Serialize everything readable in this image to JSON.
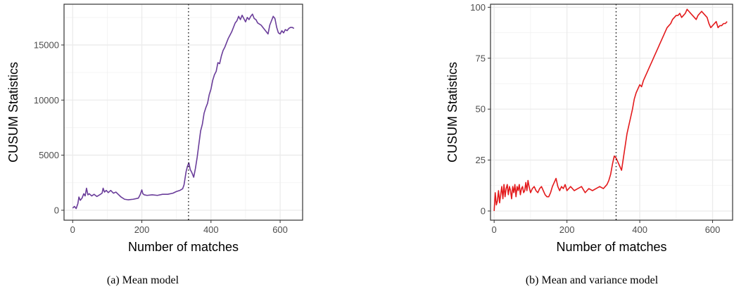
{
  "chart_data": [
    {
      "type": "line",
      "caption": "(a) Mean model",
      "xlabel": "Number of matches",
      "ylabel": "CUSUM Statistics",
      "xlim": [
        -25,
        665
      ],
      "ylim": [
        -900,
        18700
      ],
      "xticks": [
        0,
        200,
        400,
        600
      ],
      "yticks": [
        0,
        5000,
        10000,
        15000
      ],
      "xtick_labels": [
        "0",
        "200",
        "400",
        "600"
      ],
      "ytick_labels": [
        "0",
        "5000",
        "10000",
        "15000"
      ],
      "grid": true,
      "changepoint": 335,
      "line_color": "#6a3d9a",
      "x": [
        0,
        5,
        10,
        15,
        18,
        22,
        27,
        32,
        36,
        40,
        44,
        48,
        55,
        62,
        70,
        78,
        85,
        88,
        92,
        97,
        103,
        110,
        118,
        125,
        130,
        140,
        150,
        160,
        175,
        190,
        195,
        200,
        203,
        207,
        215,
        230,
        245,
        260,
        275,
        290,
        300,
        310,
        318,
        322,
        328,
        332,
        336,
        340,
        345,
        350,
        355,
        360,
        365,
        370,
        375,
        380,
        385,
        390,
        395,
        400,
        405,
        410,
        415,
        420,
        425,
        430,
        435,
        440,
        445,
        450,
        455,
        460,
        465,
        470,
        475,
        480,
        485,
        490,
        495,
        500,
        505,
        510,
        515,
        520,
        525,
        530,
        535,
        540,
        545,
        550,
        555,
        560,
        565,
        570,
        575,
        580,
        585,
        590,
        595,
        600,
        605,
        610,
        615,
        620,
        625,
        630,
        635,
        640
      ],
      "y": [
        200,
        350,
        150,
        600,
        1200,
        900,
        1100,
        1500,
        1300,
        2000,
        1400,
        1500,
        1300,
        1450,
        1250,
        1400,
        1550,
        2000,
        1650,
        1800,
        1600,
        1800,
        1550,
        1650,
        1500,
        1200,
        1000,
        950,
        1000,
        1100,
        1400,
        1850,
        1500,
        1400,
        1350,
        1400,
        1350,
        1450,
        1450,
        1550,
        1700,
        1800,
        1950,
        2300,
        3500,
        4000,
        4300,
        3700,
        3400,
        3000,
        3800,
        4800,
        6000,
        7200,
        7800,
        8800,
        9300,
        9700,
        10500,
        11000,
        11800,
        12300,
        12600,
        13400,
        13300,
        14000,
        14500,
        14800,
        15200,
        15600,
        15900,
        16200,
        16600,
        17000,
        17200,
        17600,
        17300,
        17700,
        17400,
        17100,
        17500,
        17300,
        17600,
        17800,
        17400,
        17300,
        17000,
        16900,
        16800,
        16600,
        16400,
        16200,
        16000,
        16800,
        17200,
        17600,
        17400,
        16600,
        16100,
        16000,
        16300,
        16100,
        16400,
        16300,
        16500,
        16600,
        16600,
        16500
      ]
    },
    {
      "type": "line",
      "caption": "(b) Mean and variance model",
      "xlabel": "Number of matches",
      "ylabel": "CUSUM Statistics",
      "xlim": [
        -10,
        655
      ],
      "ylim": [
        -4.5,
        101.5
      ],
      "xticks": [
        0,
        200,
        400,
        600
      ],
      "yticks": [
        0,
        25,
        50,
        75,
        100
      ],
      "xtick_labels": [
        "0",
        "200",
        "400",
        "600"
      ],
      "ytick_labels": [
        "0",
        "25",
        "50",
        "75",
        "100"
      ],
      "grid": true,
      "changepoint": 335,
      "line_color": "#e31a1c",
      "x": [
        0,
        3,
        6,
        9,
        12,
        15,
        18,
        21,
        24,
        27,
        30,
        33,
        36,
        39,
        42,
        45,
        48,
        51,
        54,
        57,
        60,
        63,
        66,
        69,
        72,
        75,
        78,
        81,
        84,
        87,
        90,
        93,
        96,
        100,
        105,
        110,
        115,
        120,
        125,
        130,
        135,
        140,
        145,
        150,
        155,
        160,
        165,
        170,
        175,
        180,
        185,
        190,
        195,
        200,
        210,
        220,
        230,
        240,
        250,
        260,
        270,
        280,
        290,
        300,
        305,
        310,
        315,
        320,
        325,
        330,
        335,
        340,
        345,
        350,
        355,
        360,
        365,
        370,
        375,
        380,
        385,
        390,
        395,
        400,
        405,
        410,
        415,
        420,
        425,
        430,
        435,
        440,
        445,
        450,
        455,
        460,
        465,
        470,
        475,
        480,
        485,
        490,
        495,
        500,
        505,
        510,
        515,
        520,
        525,
        530,
        535,
        540,
        545,
        550,
        555,
        560,
        565,
        570,
        575,
        580,
        585,
        590,
        595,
        600,
        605,
        610,
        615,
        620,
        625,
        630,
        635,
        640
      ],
      "y": [
        0,
        9,
        3,
        5,
        10,
        4,
        8,
        12,
        6,
        13,
        7,
        11,
        13,
        8,
        12,
        10,
        6,
        12,
        9,
        13,
        7,
        12,
        10,
        13,
        8,
        11,
        12,
        9,
        10,
        14,
        10,
        15,
        12,
        9,
        11,
        12,
        10,
        9,
        11,
        12,
        10,
        8,
        7,
        7,
        9,
        12,
        14,
        16,
        12,
        10,
        12,
        11,
        13,
        10,
        12,
        10,
        11,
        12,
        9,
        11,
        10,
        11,
        12,
        11,
        12,
        13,
        15,
        18,
        23,
        27,
        26,
        24,
        22,
        20,
        26,
        32,
        38,
        42,
        46,
        50,
        55,
        58,
        60,
        62,
        61,
        64,
        66,
        68,
        70,
        72,
        74,
        76,
        78,
        80,
        82,
        84,
        86,
        88,
        90,
        91,
        92,
        94,
        95,
        96,
        96,
        97,
        95,
        96,
        97,
        99,
        98,
        97,
        96,
        95,
        94,
        96,
        97,
        98,
        97,
        96,
        95,
        92,
        90,
        91,
        92,
        93,
        90,
        91,
        91,
        92,
        92,
        93
      ]
    }
  ]
}
